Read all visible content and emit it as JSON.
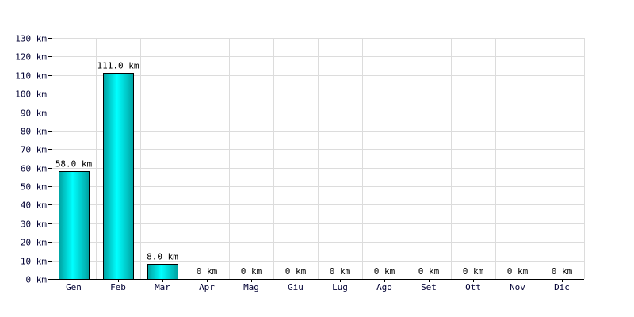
{
  "chart_data": {
    "type": "bar",
    "categories": [
      "Gen",
      "Feb",
      "Mar",
      "Apr",
      "Mag",
      "Giu",
      "Lug",
      "Ago",
      "Set",
      "Ott",
      "Nov",
      "Dic"
    ],
    "values": [
      58.0,
      111.0,
      8.0,
      0,
      0,
      0,
      0,
      0,
      0,
      0,
      0,
      0
    ],
    "value_labels": [
      "58.0 km",
      "111.0 km",
      "8.0 km",
      "0 km",
      "0 km",
      "0 km",
      "0 km",
      "0 km",
      "0 km",
      "0 km",
      "0 km",
      "0 km"
    ],
    "yticks": [
      0,
      10,
      20,
      30,
      40,
      50,
      60,
      70,
      80,
      90,
      100,
      110,
      120,
      130
    ],
    "ytick_labels": [
      "0 km",
      "10 km",
      "20 km",
      "30 km",
      "40 km",
      "50 km",
      "60 km",
      "70 km",
      "80 km",
      "90 km",
      "100 km",
      "110 km",
      "120 km",
      "130 km"
    ],
    "ylim": [
      0,
      130
    ],
    "title": "",
    "xlabel": "",
    "ylabel": "",
    "grid": true,
    "colors": {
      "bar_light": "#00ffff",
      "bar_dark": "#00a0a0",
      "bar_edge": "#000000",
      "grid": "#dcdcdc",
      "axis": "#000000"
    }
  }
}
